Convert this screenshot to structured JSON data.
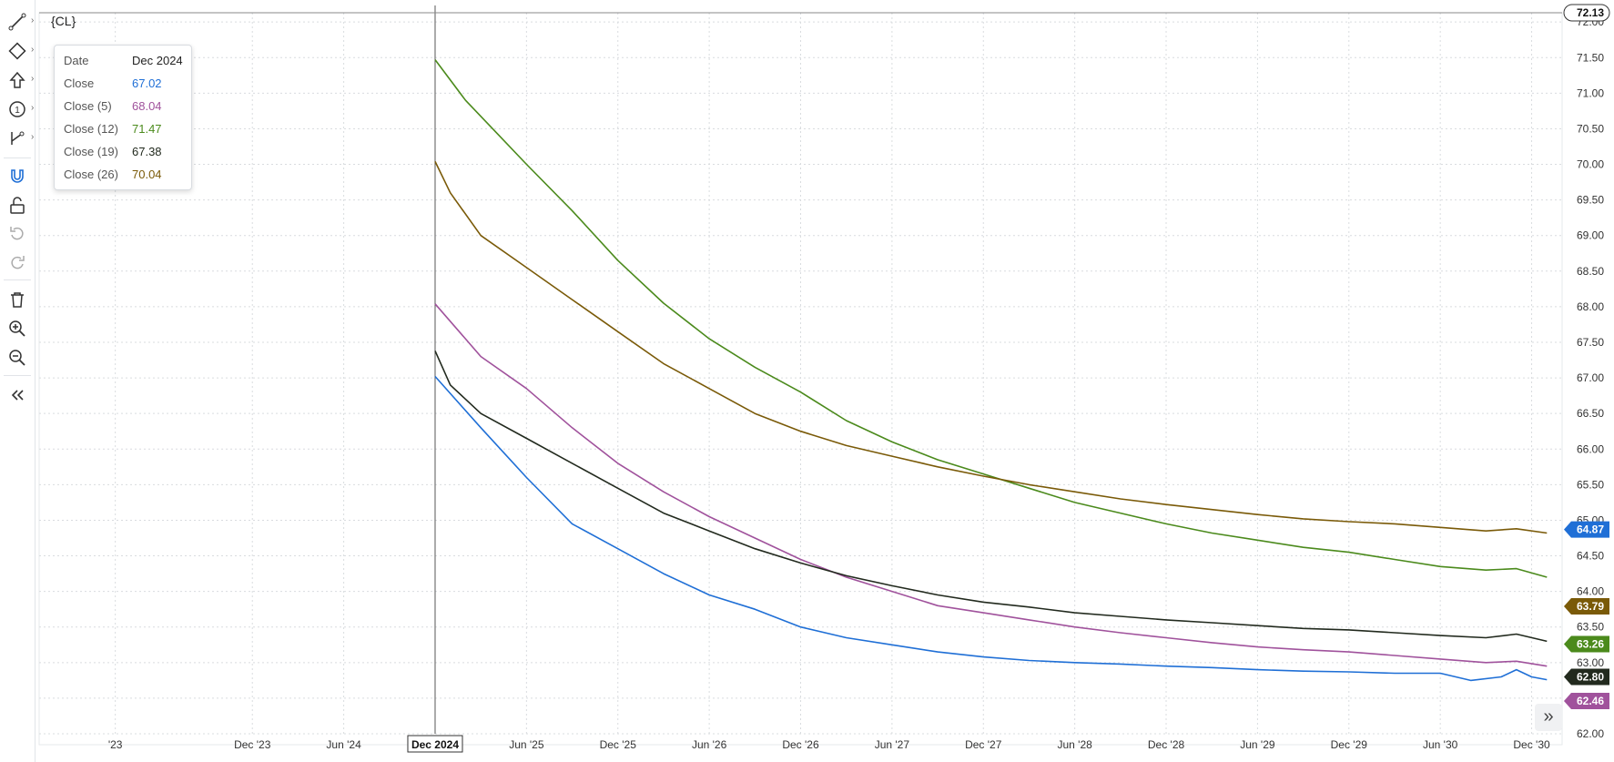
{
  "symbol": "{CL}",
  "toolbar": {
    "items": [
      {
        "name": "line-tool-icon",
        "has_arrow": true
      },
      {
        "name": "shape-tool-icon",
        "has_arrow": true
      },
      {
        "name": "arrow-tool-icon",
        "has_arrow": true
      },
      {
        "name": "number-tool-icon",
        "has_arrow": true
      },
      {
        "name": "measure-tool-icon",
        "has_arrow": true
      },
      {
        "name": "magnet-icon",
        "has_arrow": false
      },
      {
        "name": "unlock-icon",
        "has_arrow": false
      },
      {
        "name": "undo-icon",
        "has_arrow": false
      },
      {
        "name": "redo-icon",
        "has_arrow": false
      },
      {
        "name": "trash-icon",
        "has_arrow": false
      },
      {
        "name": "zoom-in-icon",
        "has_arrow": false
      },
      {
        "name": "zoom-out-icon",
        "has_arrow": false
      },
      {
        "name": "collapse-icon",
        "has_arrow": false
      }
    ]
  },
  "tooltip": {
    "rows": [
      {
        "label": "Date",
        "value": "Dec 2024",
        "color": "#222222"
      },
      {
        "label": "Close",
        "value": "67.02",
        "color": "#1f6fd6"
      },
      {
        "label": "Close (5)",
        "value": "68.04",
        "color": "#a0529c"
      },
      {
        "label": "Close (12)",
        "value": "71.47",
        "color": "#4b8a1c"
      },
      {
        "label": "Close (19)",
        "value": "67.38",
        "color": "#222a1e"
      },
      {
        "label": "Close (26)",
        "value": "70.04",
        "color": "#7a5a08"
      }
    ]
  },
  "scroll_button": {
    "label": "»"
  },
  "chart_data": {
    "type": "line",
    "x_labels": [
      "'23",
      "Dec '23",
      "Jun '24",
      "Dec 2024",
      "Jun '25",
      "Dec '25",
      "Jun '26",
      "Dec '26",
      "Jun '27",
      "Dec '27",
      "Jun '28",
      "Dec '28",
      "Jun '29",
      "Dec '29",
      "Jun '30",
      "Dec '30"
    ],
    "x_label_months": [
      -21,
      -12,
      -6,
      0,
      6,
      12,
      18,
      24,
      30,
      36,
      42,
      48,
      54,
      60,
      66,
      72
    ],
    "highlight_label": "Dec 2024",
    "y_ticks": [
      "62.00",
      "62.50",
      "63.00",
      "63.50",
      "64.00",
      "64.50",
      "65.00",
      "65.50",
      "66.00",
      "66.50",
      "67.00",
      "67.50",
      "68.00",
      "68.50",
      "69.00",
      "69.50",
      "70.00",
      "70.50",
      "71.00",
      "71.50",
      "72.00"
    ],
    "ylim": [
      62.0,
      72.13
    ],
    "x_unit": "months since Dec 2024",
    "xlim": [
      -26,
      74
    ],
    "crosshair": {
      "month": 0,
      "price": "72.13"
    },
    "series": [
      {
        "name": "Close",
        "color": "#1f6fd6",
        "label": "64.87",
        "points": [
          [
            0,
            67.02
          ],
          [
            3,
            66.3
          ],
          [
            6,
            65.6
          ],
          [
            9,
            64.95
          ],
          [
            12,
            64.6
          ],
          [
            15,
            64.25
          ],
          [
            18,
            63.95
          ],
          [
            21,
            63.75
          ],
          [
            24,
            63.5
          ],
          [
            27,
            63.35
          ],
          [
            30,
            63.25
          ],
          [
            33,
            63.15
          ],
          [
            36,
            63.08
          ],
          [
            39,
            63.03
          ],
          [
            42,
            63.0
          ],
          [
            45,
            62.98
          ],
          [
            48,
            62.95
          ],
          [
            51,
            62.93
          ],
          [
            54,
            62.9
          ],
          [
            57,
            62.88
          ],
          [
            60,
            62.87
          ],
          [
            63,
            62.85
          ],
          [
            66,
            62.85
          ],
          [
            68,
            62.75
          ],
          [
            70,
            62.8
          ],
          [
            71,
            62.9
          ],
          [
            72,
            62.8
          ],
          [
            73,
            62.76
          ]
        ]
      },
      {
        "name": "Close (5)",
        "color": "#a0529c",
        "label": "62.46",
        "points": [
          [
            0,
            68.04
          ],
          [
            3,
            67.3
          ],
          [
            6,
            66.85
          ],
          [
            9,
            66.3
          ],
          [
            12,
            65.8
          ],
          [
            15,
            65.4
          ],
          [
            18,
            65.05
          ],
          [
            21,
            64.75
          ],
          [
            24,
            64.45
          ],
          [
            27,
            64.2
          ],
          [
            30,
            64.0
          ],
          [
            33,
            63.8
          ],
          [
            36,
            63.7
          ],
          [
            39,
            63.6
          ],
          [
            42,
            63.5
          ],
          [
            45,
            63.42
          ],
          [
            48,
            63.35
          ],
          [
            51,
            63.28
          ],
          [
            54,
            63.22
          ],
          [
            57,
            63.18
          ],
          [
            60,
            63.15
          ],
          [
            63,
            63.1
          ],
          [
            66,
            63.05
          ],
          [
            69,
            63.0
          ],
          [
            71,
            63.02
          ],
          [
            73,
            62.95
          ]
        ]
      },
      {
        "name": "Close (12)",
        "color": "#4b8a1c",
        "label": "63.26",
        "points": [
          [
            0,
            71.47
          ],
          [
            2,
            70.9
          ],
          [
            4,
            70.45
          ],
          [
            6,
            70.0
          ],
          [
            9,
            69.35
          ],
          [
            12,
            68.65
          ],
          [
            15,
            68.05
          ],
          [
            18,
            67.55
          ],
          [
            21,
            67.15
          ],
          [
            24,
            66.8
          ],
          [
            27,
            66.4
          ],
          [
            30,
            66.1
          ],
          [
            33,
            65.85
          ],
          [
            36,
            65.65
          ],
          [
            39,
            65.45
          ],
          [
            42,
            65.25
          ],
          [
            45,
            65.1
          ],
          [
            48,
            64.95
          ],
          [
            51,
            64.82
          ],
          [
            54,
            64.72
          ],
          [
            57,
            64.62
          ],
          [
            60,
            64.55
          ],
          [
            63,
            64.45
          ],
          [
            66,
            64.35
          ],
          [
            69,
            64.3
          ],
          [
            71,
            64.32
          ],
          [
            73,
            64.2
          ]
        ]
      },
      {
        "name": "Close (19)",
        "color": "#222a1e",
        "label": "62.80",
        "points": [
          [
            0,
            67.38
          ],
          [
            1,
            66.9
          ],
          [
            3,
            66.5
          ],
          [
            6,
            66.15
          ],
          [
            9,
            65.8
          ],
          [
            12,
            65.45
          ],
          [
            15,
            65.1
          ],
          [
            18,
            64.85
          ],
          [
            21,
            64.6
          ],
          [
            24,
            64.4
          ],
          [
            27,
            64.22
          ],
          [
            30,
            64.08
          ],
          [
            33,
            63.95
          ],
          [
            36,
            63.85
          ],
          [
            39,
            63.78
          ],
          [
            42,
            63.7
          ],
          [
            45,
            63.65
          ],
          [
            48,
            63.6
          ],
          [
            51,
            63.56
          ],
          [
            54,
            63.52
          ],
          [
            57,
            63.48
          ],
          [
            60,
            63.46
          ],
          [
            63,
            63.42
          ],
          [
            66,
            63.38
          ],
          [
            69,
            63.35
          ],
          [
            71,
            63.4
          ],
          [
            73,
            63.3
          ]
        ]
      },
      {
        "name": "Close (26)",
        "color": "#7a5a08",
        "label": "63.79",
        "points": [
          [
            0,
            70.04
          ],
          [
            1,
            69.6
          ],
          [
            3,
            69.0
          ],
          [
            6,
            68.55
          ],
          [
            9,
            68.1
          ],
          [
            12,
            67.65
          ],
          [
            15,
            67.2
          ],
          [
            18,
            66.85
          ],
          [
            21,
            66.5
          ],
          [
            24,
            66.25
          ],
          [
            27,
            66.05
          ],
          [
            30,
            65.9
          ],
          [
            33,
            65.75
          ],
          [
            36,
            65.62
          ],
          [
            39,
            65.5
          ],
          [
            42,
            65.4
          ],
          [
            45,
            65.3
          ],
          [
            48,
            65.22
          ],
          [
            51,
            65.15
          ],
          [
            54,
            65.08
          ],
          [
            57,
            65.02
          ],
          [
            60,
            64.98
          ],
          [
            63,
            64.95
          ],
          [
            66,
            64.9
          ],
          [
            69,
            64.85
          ],
          [
            71,
            64.88
          ],
          [
            73,
            64.82
          ]
        ]
      }
    ],
    "price_labels": [
      {
        "text": "64.87",
        "color": "#1f6fd6",
        "price": 64.87
      },
      {
        "text": "63.79",
        "color": "#7a5a08",
        "price": 63.79
      },
      {
        "text": "63.26",
        "color": "#4b8a1c",
        "price": 63.26
      },
      {
        "text": "62.80",
        "color": "#222a1e",
        "price": 62.8
      },
      {
        "text": "62.46",
        "color": "#a0529c",
        "price": 62.46
      }
    ],
    "grid": true
  }
}
